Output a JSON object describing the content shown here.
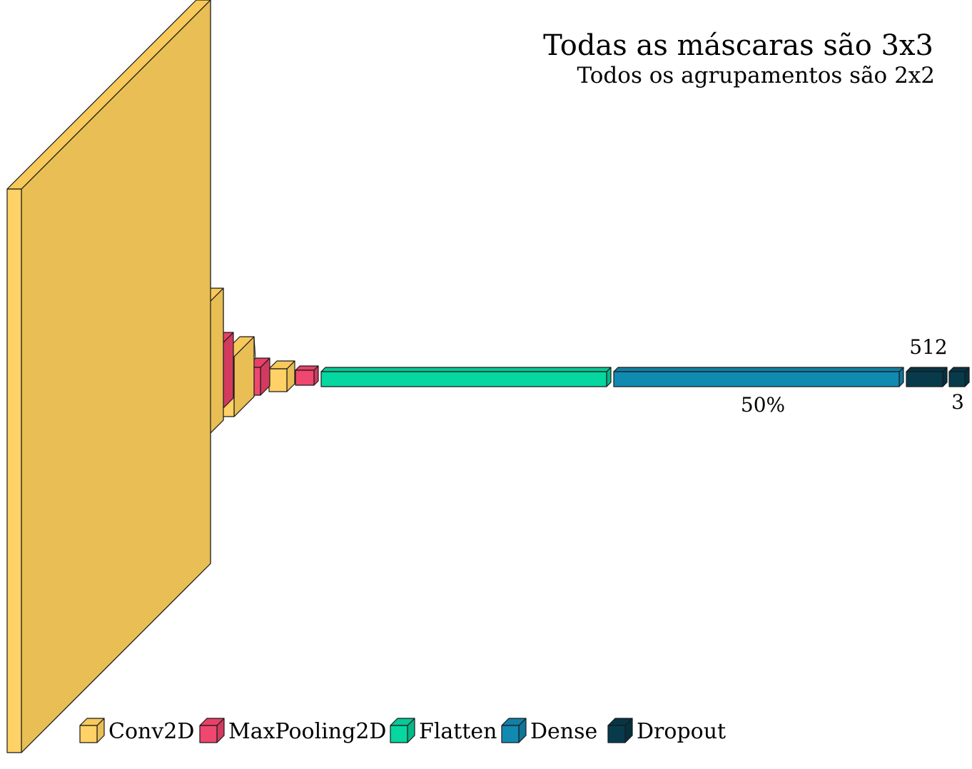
{
  "title": "Todas as máscaras são 3x3",
  "subtitle": "Todos os agrupamentos são 2x2",
  "colors": {
    "conv": {
      "front": "#FFD166",
      "side": "#E8BE55",
      "top": "#F7C95B"
    },
    "pool": {
      "front": "#EF476F",
      "side": "#D23A5F",
      "top": "#E74168"
    },
    "flatten": {
      "front": "#06D6A0",
      "side": "#05B888",
      "top": "#08C896"
    },
    "dense": {
      "front": "#118AB2",
      "side": "#0E7598",
      "top": "#1080A6"
    },
    "dropout": {
      "front": "#073B4C",
      "side": "#05303E",
      "top": "#063545"
    },
    "outline": "#1a1a1a",
    "funnel": "#E9BE55"
  },
  "annotations": {
    "dense_units": "512",
    "dropout_rate": "50%",
    "output_units": "3"
  },
  "legend": [
    {
      "label": "Conv2D",
      "type": "conv",
      "icon": "cube-icon"
    },
    {
      "label": "MaxPooling2D",
      "type": "pool",
      "icon": "cube-icon"
    },
    {
      "label": "Flatten",
      "type": "flatten",
      "icon": "cube-icon"
    },
    {
      "label": "Dense",
      "type": "dense",
      "icon": "cube-icon"
    },
    {
      "label": "Dropout",
      "type": "dropout",
      "icon": "cube-icon"
    }
  ]
}
